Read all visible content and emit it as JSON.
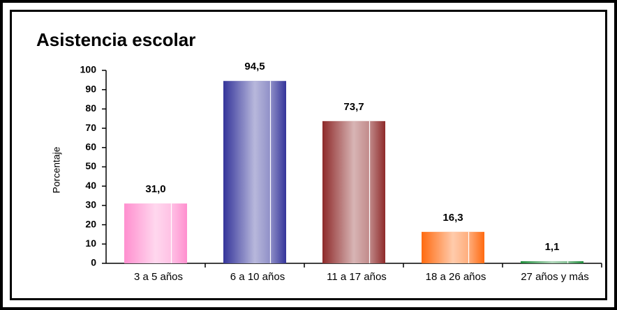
{
  "chart_data": {
    "type": "bar",
    "title": "Asistencia escolar",
    "y_label": "Porcentaje",
    "categories": [
      "3 a 5 años",
      "6 a 10 años",
      "11 a 17 años",
      "18 a 26 años",
      "27 años y más"
    ],
    "values": [
      31.0,
      94.5,
      73.7,
      16.3,
      1.1
    ],
    "value_labels": [
      "31,0",
      "94,5",
      "73,7",
      "16,3",
      "1,1"
    ],
    "colors": [
      "#ff8fcf",
      "#34349a",
      "#8e2a2a",
      "#ff6a10",
      "#1e8c3a"
    ],
    "ylim": [
      0,
      100
    ],
    "yticks": [
      0,
      10,
      20,
      30,
      40,
      50,
      60,
      70,
      80,
      90,
      100
    ],
    "grid": false
  }
}
